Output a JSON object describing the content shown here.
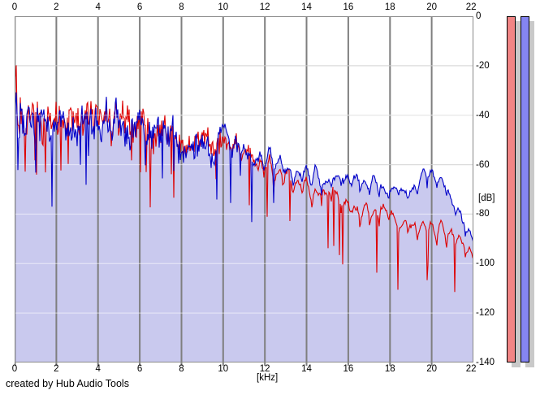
{
  "footer": {
    "credit": "created by Hub Audio Tools"
  },
  "chart_data": {
    "type": "line",
    "title": "",
    "xlabel": "[kHz]",
    "ylabel": "[dB]",
    "xlim": [
      0,
      22
    ],
    "ylim": [
      -140,
      0
    ],
    "x_ticks": [
      0,
      2,
      4,
      6,
      8,
      10,
      12,
      14,
      16,
      18,
      20,
      22
    ],
    "y_ticks": [
      0,
      -20,
      -40,
      -60,
      -80,
      -100,
      -120,
      -140
    ],
    "grid": true,
    "legend": "none",
    "plot_bg": "#ffffff",
    "fill_color": "#c9c9ee",
    "v_grid_color": "#7f7f7f",
    "h_grid_color": "#a8a8a8",
    "border_color": "#8a8a8a",
    "series": [
      {
        "name": "red-spectrum",
        "color": "#dd0000",
        "fill": false,
        "points": [
          [
            0.0,
            -55
          ],
          [
            0.05,
            -16
          ],
          [
            0.1,
            -36
          ],
          [
            0.2,
            -43
          ],
          [
            0.35,
            -37
          ],
          [
            0.5,
            -42
          ],
          [
            0.65,
            -37
          ],
          [
            0.8,
            -42
          ],
          [
            1.0,
            -43
          ],
          [
            1.2,
            -41
          ],
          [
            1.4,
            -44
          ],
          [
            1.6,
            -42
          ],
          [
            1.8,
            -43
          ],
          [
            2.0,
            -43
          ],
          [
            2.2,
            -44
          ],
          [
            2.4,
            -42
          ],
          [
            2.6,
            -43
          ],
          [
            2.8,
            -43
          ],
          [
            3.0,
            -44
          ],
          [
            3.2,
            -42
          ],
          [
            3.4,
            -43
          ],
          [
            3.6,
            -43
          ],
          [
            3.8,
            -44
          ],
          [
            4.0,
            -43
          ],
          [
            4.2,
            -43
          ],
          [
            4.4,
            -42
          ],
          [
            4.6,
            -44
          ],
          [
            4.8,
            -44
          ],
          [
            5.0,
            -45
          ],
          [
            5.2,
            -44
          ],
          [
            5.4,
            -46
          ],
          [
            5.6,
            -45
          ],
          [
            5.8,
            -46
          ],
          [
            6.0,
            -45
          ],
          [
            6.2,
            -46
          ],
          [
            6.4,
            -46
          ],
          [
            6.6,
            -47
          ],
          [
            6.8,
            -47
          ],
          [
            7.0,
            -48
          ],
          [
            7.2,
            -47
          ],
          [
            7.4,
            -49
          ],
          [
            7.6,
            -48
          ],
          [
            7.8,
            -50
          ],
          [
            8.0,
            -50
          ],
          [
            8.2,
            -51
          ],
          [
            8.4,
            -51
          ],
          [
            8.6,
            -52
          ],
          [
            8.8,
            -52
          ],
          [
            9.0,
            -53
          ],
          [
            9.2,
            -53
          ],
          [
            9.4,
            -54
          ],
          [
            9.6,
            -53
          ],
          [
            9.8,
            -51
          ],
          [
            10.0,
            -48
          ],
          [
            10.2,
            -50
          ],
          [
            10.4,
            -54
          ],
          [
            10.6,
            -53
          ],
          [
            10.8,
            -58
          ],
          [
            11.0,
            -55
          ],
          [
            11.2,
            -54
          ],
          [
            11.4,
            -59
          ],
          [
            11.6,
            -58
          ],
          [
            11.8,
            -57
          ],
          [
            12.0,
            -58
          ],
          [
            12.2,
            -57
          ],
          [
            12.4,
            -62
          ],
          [
            12.6,
            -60
          ],
          [
            12.8,
            -62
          ],
          [
            13.0,
            -64
          ],
          [
            13.2,
            -64
          ],
          [
            13.4,
            -67
          ],
          [
            13.6,
            -66
          ],
          [
            13.8,
            -69
          ],
          [
            14.0,
            -67
          ],
          [
            14.2,
            -70
          ],
          [
            14.4,
            -69
          ],
          [
            14.6,
            -72
          ],
          [
            14.8,
            -70
          ],
          [
            15.0,
            -72
          ],
          [
            15.2,
            -71
          ],
          [
            15.4,
            -73
          ],
          [
            15.6,
            -72
          ],
          [
            15.8,
            -74
          ],
          [
            16.0,
            -74
          ],
          [
            16.2,
            -76
          ],
          [
            16.4,
            -75
          ],
          [
            16.6,
            -77
          ],
          [
            16.8,
            -76
          ],
          [
            17.0,
            -78
          ],
          [
            17.2,
            -77
          ],
          [
            17.4,
            -79
          ],
          [
            17.6,
            -78
          ],
          [
            17.8,
            -80
          ],
          [
            18.0,
            -80
          ],
          [
            18.2,
            -81
          ],
          [
            18.4,
            -81
          ],
          [
            18.6,
            -83
          ],
          [
            18.8,
            -83
          ],
          [
            19.0,
            -85
          ],
          [
            19.2,
            -84
          ],
          [
            19.4,
            -85
          ],
          [
            19.6,
            -84
          ],
          [
            19.8,
            -85
          ],
          [
            20.0,
            -84
          ],
          [
            20.2,
            -85
          ],
          [
            20.4,
            -85
          ],
          [
            20.6,
            -86
          ],
          [
            20.8,
            -87
          ],
          [
            21.0,
            -88
          ],
          [
            21.2,
            -89
          ],
          [
            21.4,
            -91
          ],
          [
            21.6,
            -92
          ],
          [
            21.8,
            -94
          ],
          [
            22.0,
            -97
          ]
        ]
      },
      {
        "name": "blue-spectrum",
        "color": "#0000c8",
        "fill": true,
        "points": [
          [
            0.0,
            -57
          ],
          [
            0.05,
            -25
          ],
          [
            0.1,
            -38
          ],
          [
            0.2,
            -44
          ],
          [
            0.35,
            -36
          ],
          [
            0.5,
            -43
          ],
          [
            0.65,
            -36
          ],
          [
            0.8,
            -41
          ],
          [
            1.0,
            -44
          ],
          [
            1.2,
            -40
          ],
          [
            1.4,
            -45
          ],
          [
            1.6,
            -41
          ],
          [
            1.8,
            -44
          ],
          [
            2.0,
            -42
          ],
          [
            2.2,
            -45
          ],
          [
            2.4,
            -41
          ],
          [
            2.6,
            -44
          ],
          [
            2.8,
            -42
          ],
          [
            3.0,
            -45
          ],
          [
            3.2,
            -41
          ],
          [
            3.4,
            -44
          ],
          [
            3.6,
            -42
          ],
          [
            3.8,
            -45
          ],
          [
            4.0,
            -42
          ],
          [
            4.2,
            -44
          ],
          [
            4.4,
            -41
          ],
          [
            4.6,
            -45
          ],
          [
            4.8,
            -43
          ],
          [
            5.0,
            -46
          ],
          [
            5.2,
            -43
          ],
          [
            5.4,
            -47
          ],
          [
            5.6,
            -44
          ],
          [
            5.8,
            -47
          ],
          [
            6.0,
            -44
          ],
          [
            6.2,
            -47
          ],
          [
            6.4,
            -45
          ],
          [
            6.6,
            -48
          ],
          [
            6.8,
            -46
          ],
          [
            7.0,
            -49
          ],
          [
            7.2,
            -46
          ],
          [
            7.4,
            -50
          ],
          [
            7.6,
            -47
          ],
          [
            7.8,
            -51
          ],
          [
            8.0,
            -49
          ],
          [
            8.2,
            -52
          ],
          [
            8.4,
            -50
          ],
          [
            8.6,
            -53
          ],
          [
            8.8,
            -51
          ],
          [
            9.0,
            -54
          ],
          [
            9.2,
            -52
          ],
          [
            9.4,
            -55
          ],
          [
            9.6,
            -53
          ],
          [
            9.8,
            -50
          ],
          [
            10.0,
            -47
          ],
          [
            10.2,
            -49
          ],
          [
            10.4,
            -53
          ],
          [
            10.6,
            -52
          ],
          [
            10.8,
            -57
          ],
          [
            11.0,
            -54
          ],
          [
            11.2,
            -53
          ],
          [
            11.4,
            -58
          ],
          [
            11.6,
            -56
          ],
          [
            11.8,
            -55
          ],
          [
            12.0,
            -56
          ],
          [
            12.2,
            -55
          ],
          [
            12.4,
            -60
          ],
          [
            12.6,
            -57
          ],
          [
            12.8,
            -58
          ],
          [
            13.0,
            -60
          ],
          [
            13.2,
            -59
          ],
          [
            13.4,
            -62
          ],
          [
            13.6,
            -60
          ],
          [
            13.8,
            -63
          ],
          [
            14.0,
            -61
          ],
          [
            14.2,
            -64
          ],
          [
            14.4,
            -62
          ],
          [
            14.6,
            -65
          ],
          [
            14.8,
            -63
          ],
          [
            15.0,
            -65
          ],
          [
            15.2,
            -63
          ],
          [
            15.4,
            -66
          ],
          [
            15.6,
            -64
          ],
          [
            15.8,
            -66
          ],
          [
            16.0,
            -65
          ],
          [
            16.2,
            -67
          ],
          [
            16.4,
            -65
          ],
          [
            16.6,
            -67
          ],
          [
            16.8,
            -66
          ],
          [
            17.0,
            -68
          ],
          [
            17.2,
            -66
          ],
          [
            17.4,
            -68
          ],
          [
            17.6,
            -67
          ],
          [
            17.8,
            -69
          ],
          [
            18.0,
            -67
          ],
          [
            18.2,
            -69
          ],
          [
            18.4,
            -68
          ],
          [
            18.6,
            -70
          ],
          [
            18.8,
            -69
          ],
          [
            19.0,
            -70
          ],
          [
            19.2,
            -68
          ],
          [
            19.4,
            -66
          ],
          [
            19.6,
            -64
          ],
          [
            19.8,
            -62
          ],
          [
            20.0,
            -61
          ],
          [
            20.2,
            -62
          ],
          [
            20.4,
            -64
          ],
          [
            20.6,
            -67
          ],
          [
            20.8,
            -70
          ],
          [
            21.0,
            -73
          ],
          [
            21.2,
            -76
          ],
          [
            21.4,
            -79
          ],
          [
            21.6,
            -82
          ],
          [
            21.8,
            -85
          ],
          [
            22.0,
            -90
          ]
        ]
      }
    ],
    "render": {
      "seed": 7,
      "noise_amp": [
        [
          0,
          9
        ],
        [
          5,
          9
        ],
        [
          8,
          7
        ],
        [
          10,
          5
        ],
        [
          11,
          3.5
        ],
        [
          12,
          2.5
        ],
        [
          14,
          1.6
        ],
        [
          22,
          1.2
        ]
      ],
      "slow_amp": [
        [
          0,
          5
        ],
        [
          10,
          4
        ],
        [
          14,
          3.2
        ],
        [
          22,
          2.4
        ]
      ],
      "scallop": {
        "start_khz": 10,
        "full_khz": 12.5,
        "period_khz": 0.46,
        "depth_blue": 9,
        "depth_red": 12,
        "sharpness": 0.25
      },
      "spikes": {
        "chance": 0.045,
        "min_db": 10,
        "max_db": 28,
        "blue_max_khz": 12.5
      },
      "marker_line_db": -40
    }
  },
  "meters": {
    "shadow_color": "#c9c9c9",
    "border_color": "#000000",
    "bars": [
      {
        "name": "left-channel",
        "color": "#f28585"
      },
      {
        "name": "right-channel",
        "color": "#8585f2"
      }
    ]
  }
}
